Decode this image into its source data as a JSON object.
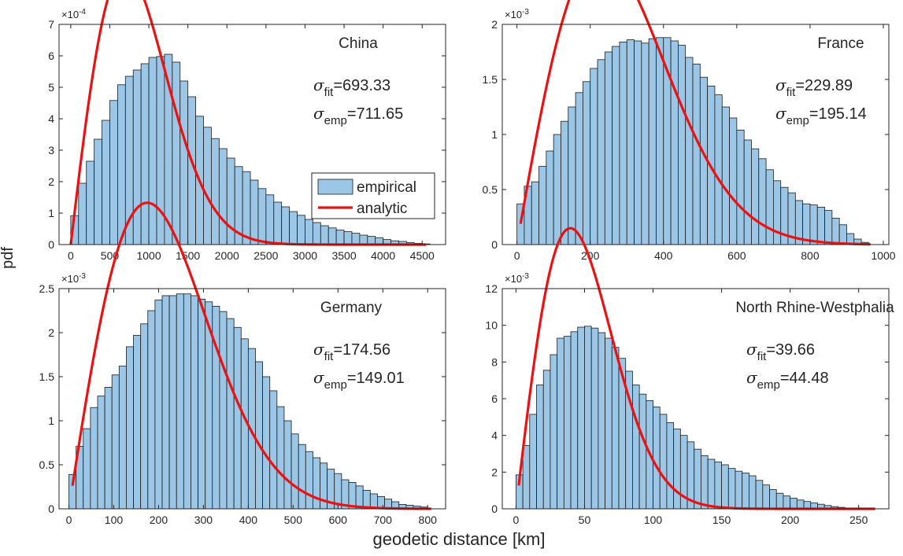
{
  "figure": {
    "ylabel": "pdf",
    "xlabel": "geodetic distance [km]"
  },
  "legend": {
    "entries": [
      "empirical",
      "analytic"
    ]
  },
  "colors": {
    "bar_fill": "#9bc6e5",
    "bar_edge": "#1c1c1c",
    "curve": "#ee1111",
    "axis": "#262626"
  },
  "chart_data": [
    {
      "type": "bar",
      "title": "China",
      "exponent_label": "×10",
      "exponent": "-4",
      "xlim": [
        -150,
        4800
      ],
      "ylim": [
        0,
        7
      ],
      "scale": 0.0001,
      "xticks": [
        0,
        500,
        1000,
        1500,
        2000,
        2500,
        3000,
        3500,
        4000,
        4500
      ],
      "yticks": [
        0,
        1,
        2,
        3,
        4,
        5,
        6,
        7
      ],
      "sigma_fit": "=693.33",
      "sigma_emp": "=711.65",
      "series": [
        {
          "name": "empirical",
          "bin_width": 100,
          "x": [
            0,
            100,
            200,
            300,
            400,
            500,
            600,
            700,
            800,
            900,
            1000,
            1100,
            1200,
            1300,
            1400,
            1500,
            1600,
            1700,
            1800,
            1900,
            2000,
            2100,
            2200,
            2300,
            2400,
            2500,
            2600,
            2700,
            2800,
            2900,
            3000,
            3100,
            3200,
            3300,
            3400,
            3500,
            3600,
            3700,
            3800,
            3900,
            4000,
            4100,
            4200,
            4300,
            4400,
            4500
          ],
          "values": [
            0.92,
            1.95,
            2.65,
            3.35,
            3.95,
            4.58,
            5.08,
            5.35,
            5.55,
            5.75,
            5.95,
            5.98,
            6.05,
            5.8,
            5.2,
            4.7,
            4.08,
            3.73,
            3.37,
            3.05,
            2.75,
            2.48,
            2.32,
            2.05,
            1.78,
            1.58,
            1.35,
            1.2,
            1.05,
            0.93,
            0.8,
            0.7,
            0.6,
            0.53,
            0.46,
            0.41,
            0.36,
            0.3,
            0.26,
            0.22,
            0.16,
            0.12,
            0.1,
            0.06,
            0.04,
            0.02
          ]
        },
        {
          "name": "analytic",
          "sigma": 693.33,
          "x_range": [
            0,
            4550
          ]
        }
      ]
    },
    {
      "type": "bar",
      "title": "France",
      "exponent_label": "×10",
      "exponent": "-3",
      "xlim": [
        -40,
        1015
      ],
      "ylim": [
        0,
        2
      ],
      "scale": 0.001,
      "xticks": [
        0,
        200,
        400,
        600,
        800,
        1000
      ],
      "yticks": [
        0,
        0.5,
        1,
        1.5,
        2
      ],
      "ytick_labels": [
        "0",
        "0.5",
        "1",
        "1.5",
        "2"
      ],
      "sigma_fit": "=229.89",
      "sigma_emp": "=195.14",
      "series": [
        {
          "name": "empirical",
          "bin_width": 20,
          "x": [
            0,
            20,
            40,
            60,
            80,
            100,
            120,
            140,
            160,
            180,
            200,
            220,
            240,
            260,
            280,
            300,
            320,
            340,
            360,
            380,
            400,
            420,
            440,
            460,
            480,
            500,
            520,
            540,
            560,
            580,
            600,
            620,
            640,
            660,
            680,
            700,
            720,
            740,
            760,
            780,
            800,
            820,
            840,
            860,
            880,
            900,
            920,
            940
          ],
          "values": [
            0.37,
            0.53,
            0.57,
            0.71,
            0.85,
            1.0,
            1.12,
            1.25,
            1.38,
            1.48,
            1.6,
            1.68,
            1.75,
            1.8,
            1.84,
            1.86,
            1.85,
            1.83,
            1.87,
            1.88,
            1.88,
            1.85,
            1.81,
            1.7,
            1.64,
            1.52,
            1.44,
            1.36,
            1.25,
            1.15,
            1.04,
            0.95,
            0.87,
            0.78,
            0.68,
            0.58,
            0.52,
            0.47,
            0.4,
            0.37,
            0.36,
            0.34,
            0.31,
            0.24,
            0.18,
            0.1,
            0.05,
            0.02
          ]
        },
        {
          "name": "analytic",
          "sigma": 229.89,
          "x_range": [
            10,
            965
          ]
        }
      ]
    },
    {
      "type": "bar",
      "title": "Germany",
      "exponent_label": "×10",
      "exponent": "-3",
      "xlim": [
        -22,
        840
      ],
      "ylim": [
        0,
        2.5
      ],
      "scale": 0.001,
      "xticks": [
        0,
        100,
        200,
        300,
        400,
        500,
        600,
        700,
        800
      ],
      "yticks": [
        0,
        0.5,
        1,
        1.5,
        2,
        2.5
      ],
      "ytick_labels": [
        "0",
        "0.5",
        "1",
        "1.5",
        "2",
        "2.5"
      ],
      "sigma_fit": "=174.56",
      "sigma_emp": "=149.01",
      "series": [
        {
          "name": "empirical",
          "bin_width": 16,
          "x": [
            0,
            16,
            32,
            48,
            64,
            80,
            96,
            112,
            128,
            144,
            160,
            176,
            192,
            208,
            224,
            240,
            256,
            272,
            288,
            304,
            320,
            336,
            352,
            368,
            384,
            400,
            416,
            432,
            448,
            464,
            480,
            496,
            512,
            528,
            544,
            560,
            576,
            592,
            608,
            624,
            640,
            656,
            672,
            688,
            704,
            720,
            736,
            752,
            768,
            784
          ],
          "values": [
            0.39,
            0.71,
            0.91,
            1.15,
            1.28,
            1.38,
            1.52,
            1.62,
            1.84,
            1.97,
            2.1,
            2.25,
            2.37,
            2.42,
            2.42,
            2.44,
            2.44,
            2.42,
            2.38,
            2.35,
            2.3,
            2.24,
            2.16,
            2.06,
            1.93,
            1.82,
            1.67,
            1.5,
            1.34,
            1.16,
            1.0,
            0.85,
            0.73,
            0.65,
            0.58,
            0.52,
            0.45,
            0.4,
            0.33,
            0.3,
            0.26,
            0.21,
            0.17,
            0.14,
            0.11,
            0.08,
            0.05,
            0.04,
            0.03,
            0.02
          ]
        },
        {
          "name": "analytic",
          "sigma": 174.56,
          "x_range": [
            8,
            808
          ]
        }
      ]
    },
    {
      "type": "bar",
      "title": "North Rhine-Westphalia",
      "exponent_label": "×10",
      "exponent": "-3",
      "xlim": [
        -10,
        272
      ],
      "ylim": [
        0,
        12
      ],
      "scale": 0.001,
      "xticks": [
        0,
        50,
        100,
        150,
        200,
        250
      ],
      "yticks": [
        0,
        2,
        4,
        6,
        8,
        10,
        12
      ],
      "sigma_fit": "=39.66",
      "sigma_emp": "=44.48",
      "series": [
        {
          "name": "empirical",
          "bin_width": 5,
          "x": [
            0,
            5,
            10,
            15,
            20,
            25,
            30,
            35,
            40,
            45,
            50,
            55,
            60,
            65,
            70,
            75,
            80,
            85,
            90,
            95,
            100,
            105,
            110,
            115,
            120,
            125,
            130,
            135,
            140,
            145,
            150,
            155,
            160,
            165,
            170,
            175,
            180,
            185,
            190,
            195,
            200,
            205,
            210,
            215,
            220,
            225,
            230,
            235,
            240,
            245,
            250,
            255
          ],
          "values": [
            1.85,
            3.45,
            5.15,
            6.75,
            7.55,
            8.4,
            9.3,
            9.4,
            9.65,
            9.9,
            9.95,
            9.85,
            9.6,
            9.3,
            8.8,
            8.2,
            7.5,
            6.75,
            6.25,
            5.9,
            5.55,
            5.15,
            4.7,
            4.35,
            4.0,
            3.65,
            3.25,
            2.9,
            2.7,
            2.55,
            2.4,
            2.2,
            2.05,
            1.95,
            1.8,
            1.55,
            1.3,
            1.05,
            0.85,
            0.7,
            0.58,
            0.48,
            0.4,
            0.32,
            0.25,
            0.18,
            0.12,
            0.08,
            0.04,
            0.02,
            0.01,
            0.01
          ]
        },
        {
          "name": "analytic",
          "sigma": 39.66,
          "x_range": [
            2,
            262
          ]
        }
      ]
    }
  ]
}
